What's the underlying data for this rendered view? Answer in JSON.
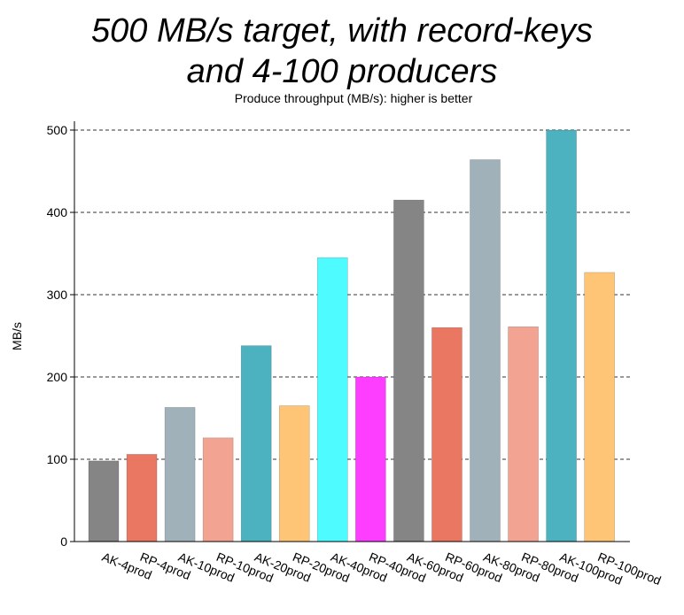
{
  "chart_data": {
    "type": "bar",
    "title_lines": [
      "500 MB/s target, with record-keys",
      "and 4-100 producers"
    ],
    "subtitle": "Produce throughput (MB/s): higher is better",
    "xlabel": "",
    "ylabel": "MB/s",
    "ylim": [
      0,
      500
    ],
    "yticks": [
      0,
      100,
      200,
      300,
      400,
      500
    ],
    "grid": "horizontal-dashed",
    "categories": [
      "AK-4prod",
      "RP-4prod",
      "AK-10prod",
      "RP-10prod",
      "AK-20prod",
      "RP-20prod",
      "AK-40prod",
      "RP-40prod",
      "AK-60prod",
      "RP-60prod",
      "AK-80prod",
      "RP-80prod",
      "AK-100prod",
      "RP-100prod"
    ],
    "values": [
      98,
      106,
      163,
      126,
      238,
      165,
      345,
      200,
      415,
      260,
      464,
      261,
      500,
      327
    ],
    "colors": [
      "#858585",
      "#e97762",
      "#a0b1ba",
      "#f2a391",
      "#4cb2bf",
      "#fdc575",
      "#4efcff",
      "#fd3dff",
      "#858585",
      "#e97762",
      "#a0b1ba",
      "#f2a391",
      "#4cb2bf",
      "#fdc575"
    ]
  }
}
